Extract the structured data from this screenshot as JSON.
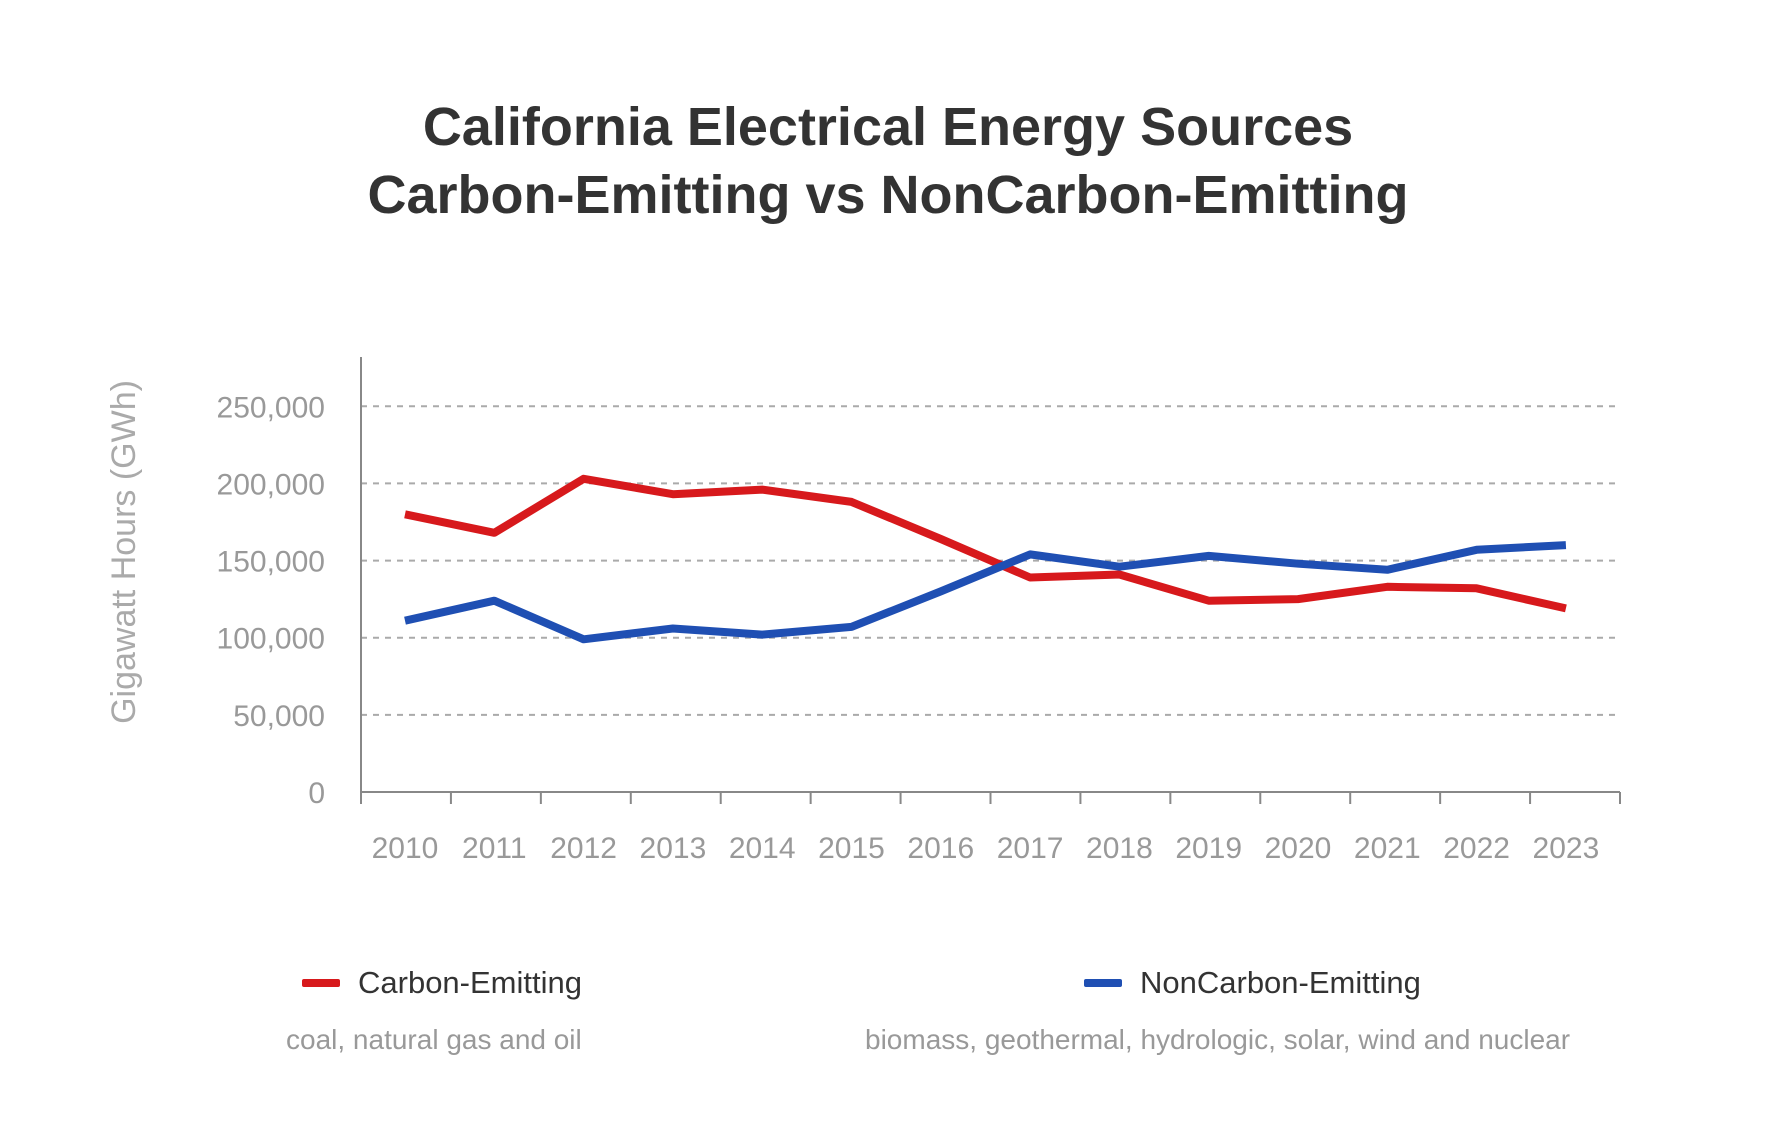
{
  "chart_data": {
    "type": "line",
    "title_lines": [
      "California Electrical Energy Sources",
      "Carbon-Emitting vs NonCarbon-Emitting"
    ],
    "xlabel": "",
    "ylabel": "Gigawatt Hours (GWh)",
    "categories": [
      "2010",
      "2011",
      "2012",
      "2013",
      "2014",
      "2015",
      "2016",
      "2017",
      "2018",
      "2019",
      "2020",
      "2021",
      "2022",
      "2023"
    ],
    "ylim": [
      0,
      280000
    ],
    "yticks": [
      0,
      50000,
      100000,
      150000,
      200000,
      250000
    ],
    "ytick_labels": [
      "0",
      "50,000",
      "100,000",
      "150,000",
      "200,000",
      "250,000"
    ],
    "grid": "horizontal dashed",
    "legend_position": "bottom",
    "series": [
      {
        "name": "Carbon-Emitting",
        "description": "coal, natural gas and oil",
        "color": "#d7191c",
        "values": [
          180000,
          168000,
          203000,
          193000,
          196000,
          188000,
          164000,
          139000,
          141000,
          124000,
          125000,
          133000,
          132000,
          119000
        ]
      },
      {
        "name": "NonCarbon-Emitting",
        "description": "biomass, geothermal, hydrologic, solar, wind and nuclear",
        "color": "#1f4fb3",
        "values": [
          111000,
          124000,
          99000,
          106000,
          102000,
          107000,
          130000,
          154000,
          146000,
          153000,
          148000,
          144000,
          157000,
          160000
        ]
      }
    ]
  }
}
